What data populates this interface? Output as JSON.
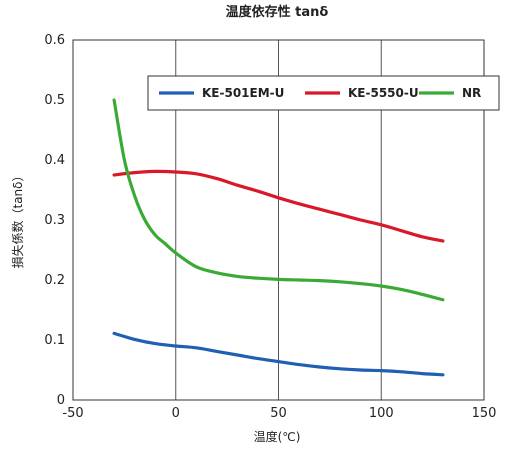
{
  "chart_data": {
    "type": "line",
    "title": "温度依存性 tanδ",
    "xlabel": "温度(℃)",
    "ylabel": "損失係数（tanδ）",
    "xlim": [
      -50,
      150
    ],
    "ylim": [
      0,
      0.6
    ],
    "x_ticks": [
      "-50",
      "0",
      "50",
      "100",
      "150"
    ],
    "y_ticks": [
      "0",
      "0.1",
      "0.2",
      "0.3",
      "0.4",
      "0.5",
      "0.6"
    ],
    "grid": "vertical",
    "legend": "top-right",
    "series": [
      {
        "name": "KE-501EM-U",
        "color": "#1f5fb4",
        "points": [
          [
            -30,
            0.111
          ],
          [
            -20,
            0.101
          ],
          [
            -10,
            0.094
          ],
          [
            0,
            0.09
          ],
          [
            10,
            0.087
          ],
          [
            20,
            0.081
          ],
          [
            30,
            0.075
          ],
          [
            40,
            0.069
          ],
          [
            50,
            0.064
          ],
          [
            60,
            0.059
          ],
          [
            70,
            0.055
          ],
          [
            80,
            0.052
          ],
          [
            90,
            0.05
          ],
          [
            100,
            0.049
          ],
          [
            110,
            0.047
          ],
          [
            120,
            0.044
          ],
          [
            130,
            0.042
          ]
        ]
      },
      {
        "name": "KE-5550-U",
        "color": "#d9182a",
        "points": [
          [
            -30,
            0.375
          ],
          [
            -20,
            0.379
          ],
          [
            -10,
            0.381
          ],
          [
            0,
            0.38
          ],
          [
            10,
            0.377
          ],
          [
            20,
            0.369
          ],
          [
            30,
            0.358
          ],
          [
            40,
            0.348
          ],
          [
            50,
            0.337
          ],
          [
            60,
            0.327
          ],
          [
            70,
            0.318
          ],
          [
            80,
            0.309
          ],
          [
            90,
            0.3
          ],
          [
            100,
            0.292
          ],
          [
            110,
            0.282
          ],
          [
            120,
            0.272
          ],
          [
            130,
            0.265
          ]
        ]
      },
      {
        "name": "NR",
        "color": "#3aaa35",
        "points": [
          [
            -30,
            0.5
          ],
          [
            -25,
            0.4
          ],
          [
            -20,
            0.34
          ],
          [
            -15,
            0.3
          ],
          [
            -10,
            0.275
          ],
          [
            -5,
            0.26
          ],
          [
            0,
            0.245
          ],
          [
            10,
            0.222
          ],
          [
            20,
            0.212
          ],
          [
            30,
            0.206
          ],
          [
            40,
            0.203
          ],
          [
            50,
            0.201
          ],
          [
            60,
            0.2
          ],
          [
            70,
            0.199
          ],
          [
            80,
            0.197
          ],
          [
            90,
            0.194
          ],
          [
            100,
            0.19
          ],
          [
            110,
            0.184
          ],
          [
            120,
            0.176
          ],
          [
            130,
            0.167
          ]
        ]
      }
    ]
  }
}
